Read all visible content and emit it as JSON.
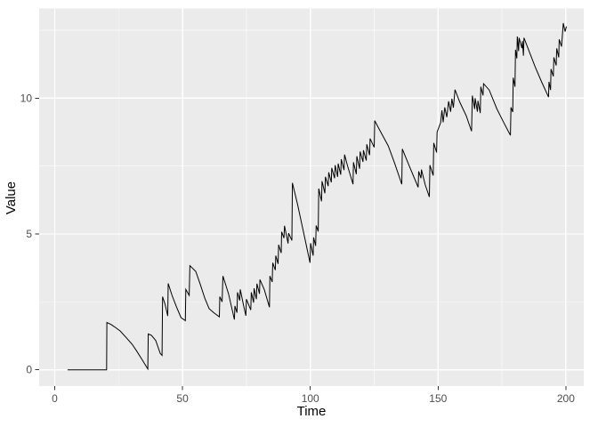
{
  "figure": {
    "outer_background": "#FFFFFF"
  },
  "chart_data": {
    "type": "line",
    "title": "",
    "xlabel": "Time",
    "ylabel": "Value",
    "legend": false,
    "grid": true,
    "panel_bg": "#EBEBEB",
    "grid_color": "#FFFFFF",
    "line_color": "#000000",
    "tick_mark_color": "#333333",
    "tick_label_color": "#4D4D4D",
    "axis_title_color": "#000000",
    "xlim": [
      -6.1,
      207
    ],
    "ylim": [
      -0.6,
      13.3
    ],
    "x_ticks": {
      "values": [
        0,
        50,
        100,
        150,
        200
      ],
      "labels": [
        "0",
        "50",
        "100",
        "150",
        "200"
      ]
    },
    "y_ticks": {
      "values": [
        0,
        5,
        10
      ],
      "labels": [
        "0",
        "5",
        "10"
      ]
    },
    "x_minor": [
      25,
      75,
      125,
      175
    ],
    "y_minor": [
      2.5,
      7.5,
      12.5
    ],
    "series": [
      {
        "name": "Value",
        "points": [
          [
            5,
            0
          ],
          [
            20.3,
            0
          ],
          [
            20.4,
            1.74
          ],
          [
            22,
            1.67
          ],
          [
            24,
            1.54
          ],
          [
            25.6,
            1.43
          ],
          [
            28,
            1.18
          ],
          [
            30.3,
            0.94
          ],
          [
            32,
            0.7
          ],
          [
            34,
            0.4
          ],
          [
            36.4,
            0.03
          ],
          [
            36.6,
            1.32
          ],
          [
            37.8,
            1.27
          ],
          [
            39.5,
            1.08
          ],
          [
            41.3,
            0.6
          ],
          [
            42,
            0.53
          ],
          [
            42.2,
            2.69
          ],
          [
            43.2,
            2.4
          ],
          [
            44.2,
            1.98
          ],
          [
            44.4,
            3.18
          ],
          [
            45.9,
            2.74
          ],
          [
            47.7,
            2.3
          ],
          [
            49.4,
            1.92
          ],
          [
            51.1,
            1.81
          ],
          [
            51.3,
            2.96
          ],
          [
            52.6,
            2.74
          ],
          [
            52.9,
            3.83
          ],
          [
            55.2,
            3.62
          ],
          [
            57,
            3.13
          ],
          [
            58.7,
            2.64
          ],
          [
            60.4,
            2.25
          ],
          [
            62.2,
            2.1
          ],
          [
            64.4,
            1.95
          ],
          [
            64.6,
            2.69
          ],
          [
            65.5,
            2.5
          ],
          [
            65.8,
            3.45
          ],
          [
            68,
            2.8
          ],
          [
            70.3,
            1.85
          ],
          [
            70.5,
            2.35
          ],
          [
            71.3,
            2.1
          ],
          [
            71.5,
            2.85
          ],
          [
            72.4,
            2.55
          ],
          [
            72.6,
            2.96
          ],
          [
            73.8,
            2.4
          ],
          [
            74.8,
            1.99
          ],
          [
            75,
            2.6
          ],
          [
            76.7,
            2.2
          ],
          [
            76.9,
            2.85
          ],
          [
            77.8,
            2.47
          ],
          [
            78,
            3.0
          ],
          [
            78.9,
            2.6
          ],
          [
            79.1,
            3.17
          ],
          [
            80.1,
            2.8
          ],
          [
            80.3,
            3.32
          ],
          [
            82,
            2.95
          ],
          [
            84,
            2.3
          ],
          [
            84.2,
            3.45
          ],
          [
            85.1,
            3.23
          ],
          [
            85.3,
            3.94
          ],
          [
            86.3,
            3.67
          ],
          [
            86.5,
            4.2
          ],
          [
            87.4,
            3.9
          ],
          [
            87.6,
            4.6
          ],
          [
            88.6,
            4.3
          ],
          [
            88.8,
            5.08
          ],
          [
            89.7,
            4.85
          ],
          [
            89.9,
            5.3
          ],
          [
            91.3,
            4.65
          ],
          [
            91.5,
            5.03
          ],
          [
            92.8,
            4.76
          ],
          [
            93,
            6.88
          ],
          [
            95,
            6.1
          ],
          [
            97.5,
            5.0
          ],
          [
            99.9,
            3.94
          ],
          [
            100.1,
            4.66
          ],
          [
            101.1,
            4.2
          ],
          [
            101.3,
            4.87
          ],
          [
            102.1,
            4.56
          ],
          [
            102.3,
            5.31
          ],
          [
            103.1,
            5.09
          ],
          [
            103.3,
            6.67
          ],
          [
            104.4,
            6.2
          ],
          [
            104.6,
            6.94
          ],
          [
            105.7,
            6.5
          ],
          [
            105.9,
            7.1
          ],
          [
            107,
            6.76
          ],
          [
            107.2,
            7.27
          ],
          [
            108.2,
            6.9
          ],
          [
            108.4,
            7.43
          ],
          [
            109.5,
            7.05
          ],
          [
            109.7,
            7.53
          ],
          [
            110.7,
            7.1
          ],
          [
            110.9,
            7.59
          ],
          [
            111.9,
            7.18
          ],
          [
            112.1,
            7.75
          ],
          [
            113.2,
            7.35
          ],
          [
            113.4,
            7.92
          ],
          [
            114.6,
            7.5
          ],
          [
            116.7,
            6.83
          ],
          [
            116.9,
            7.64
          ],
          [
            118,
            7.2
          ],
          [
            118.2,
            7.86
          ],
          [
            119.3,
            7.4
          ],
          [
            119.5,
            8.03
          ],
          [
            120.6,
            7.65
          ],
          [
            120.8,
            8.08
          ],
          [
            121.9,
            7.7
          ],
          [
            122.1,
            8.3
          ],
          [
            123.2,
            7.9
          ],
          [
            123.4,
            8.51
          ],
          [
            125,
            8.19
          ],
          [
            125.2,
            9.17
          ],
          [
            127,
            8.85
          ],
          [
            130.5,
            8.24
          ],
          [
            133,
            7.6
          ],
          [
            135.8,
            6.83
          ],
          [
            136,
            8.13
          ],
          [
            138.5,
            7.55
          ],
          [
            142.2,
            6.72
          ],
          [
            142.4,
            7.3
          ],
          [
            143.3,
            7.05
          ],
          [
            143.5,
            7.37
          ],
          [
            145,
            6.8
          ],
          [
            146.6,
            6.36
          ],
          [
            146.8,
            7.53
          ],
          [
            148.1,
            7.15
          ],
          [
            148.3,
            8.35
          ],
          [
            149.4,
            8.0
          ],
          [
            149.6,
            8.75
          ],
          [
            151,
            9.1
          ],
          [
            151.5,
            9.55
          ],
          [
            152,
            9.11
          ],
          [
            152.6,
            9.66
          ],
          [
            153.4,
            9.3
          ],
          [
            154.1,
            9.88
          ],
          [
            154.9,
            9.5
          ],
          [
            155.4,
            9.98
          ],
          [
            156,
            9.65
          ],
          [
            156.6,
            10.31
          ],
          [
            158.5,
            9.85
          ],
          [
            161,
            9.35
          ],
          [
            163.1,
            8.78
          ],
          [
            163.4,
            10.09
          ],
          [
            164.3,
            9.6
          ],
          [
            164.5,
            10.0
          ],
          [
            165.4,
            9.5
          ],
          [
            165.6,
            9.9
          ],
          [
            166.5,
            9.45
          ],
          [
            166.7,
            10.42
          ],
          [
            167.6,
            10.1
          ],
          [
            167.8,
            10.53
          ],
          [
            170,
            10.3
          ],
          [
            173,
            9.6
          ],
          [
            175.7,
            9.1
          ],
          [
            178.3,
            8.63
          ],
          [
            178.5,
            9.66
          ],
          [
            179.2,
            9.49
          ],
          [
            179.4,
            10.75
          ],
          [
            180.1,
            10.42
          ],
          [
            180.3,
            11.78
          ],
          [
            180.8,
            11.46
          ],
          [
            181,
            12.27
          ],
          [
            181.5,
            11.73
          ],
          [
            181.7,
            12.22
          ],
          [
            182.8,
            11.84
          ],
          [
            183,
            12.1
          ],
          [
            183.4,
            11.56
          ],
          [
            183.6,
            12.22
          ],
          [
            185.5,
            11.75
          ],
          [
            188,
            11.15
          ],
          [
            190.5,
            10.6
          ],
          [
            193.2,
            10.04
          ],
          [
            193.4,
            10.6
          ],
          [
            194,
            10.3
          ],
          [
            194.2,
            11.07
          ],
          [
            195.1,
            10.8
          ],
          [
            195.3,
            11.5
          ],
          [
            196.2,
            11.2
          ],
          [
            196.4,
            11.83
          ],
          [
            197.2,
            11.5
          ],
          [
            197.4,
            12.16
          ],
          [
            198.3,
            11.9
          ],
          [
            199,
            12.76
          ],
          [
            199.7,
            12.45
          ],
          [
            200.2,
            12.64
          ]
        ]
      }
    ]
  }
}
